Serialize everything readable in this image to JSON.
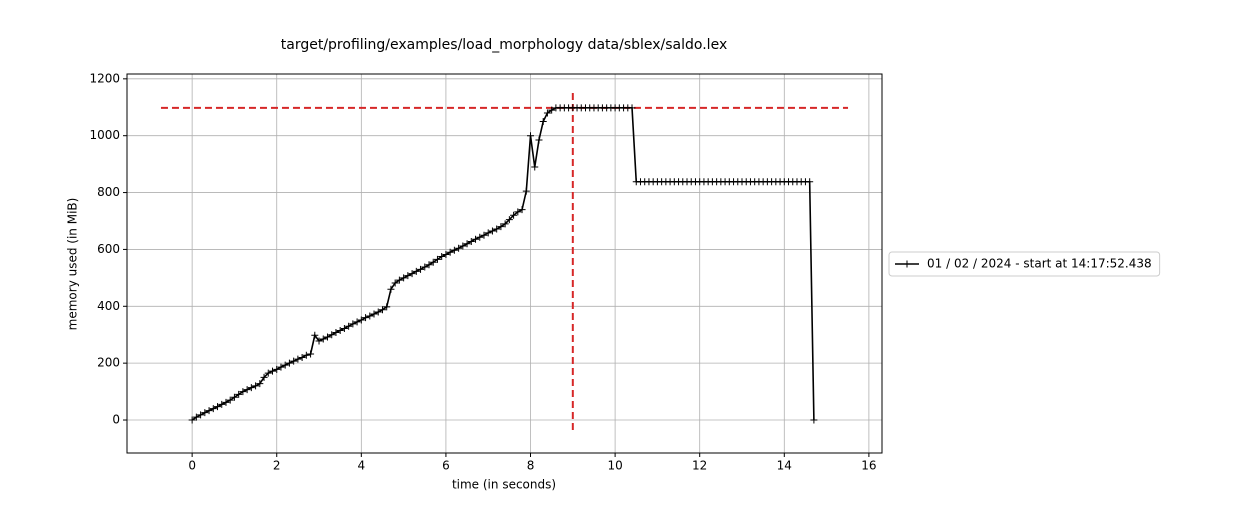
{
  "chart_data": {
    "type": "line",
    "title": "target/profiling/examples/load_morphology data/sblex/saldo.lex",
    "x_label": "time (in seconds)",
    "y_label": "memory used (in MiB)",
    "xlim": [
      -1.54,
      16.31
    ],
    "ylim": [
      -116,
      1217
    ],
    "xticks": [
      0,
      2,
      4,
      6,
      8,
      10,
      12,
      14,
      16
    ],
    "yticks": [
      0,
      200,
      400,
      600,
      800,
      1000,
      1200
    ],
    "grid": true,
    "legend_position": "outside-right",
    "series": [
      {
        "name": "01 / 02 / 2024 - start at 14:17:52.438",
        "color": "#000000",
        "x": [
          0,
          0.1,
          0.2,
          0.3,
          0.4,
          0.5,
          0.6,
          0.7,
          0.8,
          0.9,
          1.0,
          1.1,
          1.2,
          1.3,
          1.4,
          1.5,
          1.6,
          1.7,
          1.8,
          1.9,
          2.0,
          2.1,
          2.2,
          2.3,
          2.4,
          2.5,
          2.6,
          2.7,
          2.8,
          2.9,
          3.0,
          3.1,
          3.2,
          3.3,
          3.4,
          3.5,
          3.6,
          3.7,
          3.8,
          3.9,
          4.0,
          4.1,
          4.2,
          4.3,
          4.4,
          4.5,
          4.6,
          4.7,
          4.8,
          4.9,
          5.0,
          5.1,
          5.2,
          5.3,
          5.4,
          5.5,
          5.6,
          5.7,
          5.8,
          5.9,
          6.0,
          6.1,
          6.2,
          6.3,
          6.4,
          6.5,
          6.6,
          6.7,
          6.8,
          6.9,
          7.0,
          7.1,
          7.2,
          7.3,
          7.4,
          7.5,
          7.6,
          7.7,
          7.8,
          7.9,
          8.0,
          8.1,
          8.2,
          8.3,
          8.4,
          8.5,
          8.6,
          8.7,
          8.8,
          8.9,
          9.0,
          9.1,
          9.2,
          9.3,
          9.4,
          9.5,
          9.6,
          9.7,
          9.8,
          9.9,
          10.0,
          10.1,
          10.2,
          10.3,
          10.4,
          10.5,
          10.6,
          10.7,
          10.8,
          10.9,
          11.0,
          11.1,
          11.2,
          11.3,
          11.4,
          11.5,
          11.6,
          11.7,
          11.8,
          11.9,
          12.0,
          12.1,
          12.2,
          12.3,
          12.4,
          12.5,
          12.6,
          12.7,
          12.8,
          12.9,
          13.0,
          13.1,
          13.2,
          13.3,
          13.4,
          13.5,
          13.6,
          13.7,
          13.8,
          13.9,
          14.0,
          14.1,
          14.2,
          14.3,
          14.4,
          14.5,
          14.6,
          14.7
        ],
        "values": [
          0,
          10,
          18,
          26,
          33,
          40,
          47,
          55,
          62,
          70,
          80,
          90,
          100,
          107,
          114,
          120,
          128,
          150,
          165,
          172,
          178,
          186,
          193,
          200,
          207,
          214,
          220,
          228,
          232,
          298,
          278,
          285,
          292,
          300,
          308,
          315,
          322,
          330,
          338,
          345,
          352,
          360,
          366,
          373,
          380,
          388,
          398,
          460,
          482,
          492,
          500,
          508,
          515,
          523,
          530,
          538,
          546,
          555,
          565,
          575,
          582,
          590,
          597,
          604,
          612,
          620,
          628,
          636,
          643,
          650,
          658,
          665,
          672,
          680,
          690,
          705,
          720,
          732,
          740,
          805,
          1000,
          890,
          985,
          1050,
          1080,
          1090,
          1098,
          1098,
          1098,
          1098,
          1098,
          1098,
          1098,
          1098,
          1098,
          1098,
          1098,
          1098,
          1098,
          1098,
          1098,
          1098,
          1098,
          1098,
          1098,
          838,
          838,
          838,
          838,
          838,
          838,
          838,
          838,
          838,
          838,
          838,
          838,
          838,
          838,
          838,
          838,
          838,
          838,
          838,
          838,
          838,
          838,
          838,
          838,
          838,
          838,
          838,
          838,
          838,
          838,
          838,
          838,
          838,
          838,
          838,
          838,
          838,
          838,
          838,
          838,
          838,
          838,
          0
        ]
      }
    ],
    "max_marker": {
      "x": 9.0,
      "y": 1098,
      "color": "#d62728"
    }
  }
}
